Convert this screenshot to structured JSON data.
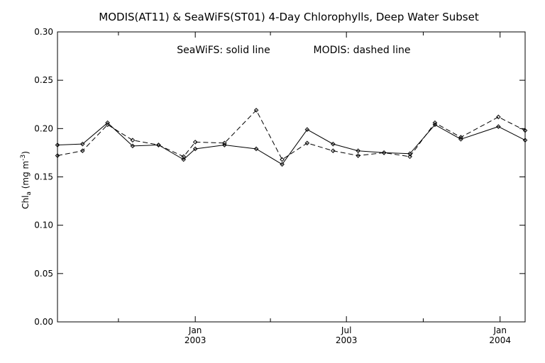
{
  "chart_data": {
    "type": "line",
    "title": "MODIS(AT11) & SeaWiFS(ST01) 4-Day Chlorophylls, Deep Water Subset",
    "annotation_solid": "SeaWiFS: solid line",
    "annotation_dashed": "MODIS: dashed line",
    "ylabel_main": "Chl",
    "ylabel_sub": "a",
    "ylabel_units": " (mg m",
    "ylabel_exp": "-3",
    "ylabel_close": ")",
    "ylim": [
      0.0,
      0.3
    ],
    "yticks": [
      "0.00",
      "0.05",
      "0.10",
      "0.15",
      "0.20",
      "0.25",
      "0.30"
    ],
    "xlim": [
      "2002-07-20",
      "2004-01-31"
    ],
    "xticks": [
      {
        "date": "2003-01-01",
        "label1": "Jan",
        "label2": "2003"
      },
      {
        "date": "2003-07-01",
        "label1": "Jul",
        "label2": "2003"
      },
      {
        "date": "2004-01-01",
        "label1": "Jan",
        "label2": "2004"
      }
    ],
    "x_minor_ticks": [
      "2002-10-01",
      "2003-04-01",
      "2003-10-01"
    ],
    "grid": false,
    "series": [
      {
        "name": "SeaWiFS",
        "style": "solid",
        "x": [
          "2002-07-20",
          "2002-08-19",
          "2002-09-18",
          "2002-10-18",
          "2002-11-18",
          "2002-12-18",
          "2003-01-01",
          "2003-02-05",
          "2003-03-15",
          "2003-04-15",
          "2003-05-15",
          "2003-06-15",
          "2003-07-15",
          "2003-08-15",
          "2003-09-15",
          "2003-10-15",
          "2003-11-15",
          "2003-12-30",
          "2004-01-31"
        ],
        "values": [
          0.183,
          0.184,
          0.206,
          0.182,
          0.183,
          0.168,
          0.179,
          0.183,
          0.179,
          0.163,
          0.199,
          0.184,
          0.177,
          0.175,
          0.174,
          0.204,
          0.189,
          0.202,
          0.188
        ]
      },
      {
        "name": "MODIS",
        "style": "dashed",
        "x": [
          "2002-07-20",
          "2002-08-19",
          "2002-09-18",
          "2002-10-18",
          "2002-11-18",
          "2002-12-18",
          "2003-01-01",
          "2003-02-05",
          "2003-03-15",
          "2003-04-15",
          "2003-05-15",
          "2003-06-15",
          "2003-07-15",
          "2003-08-15",
          "2003-09-15",
          "2003-10-15",
          "2003-11-15",
          "2003-12-30",
          "2004-01-31"
        ],
        "values": [
          0.172,
          0.177,
          0.204,
          0.188,
          0.183,
          0.171,
          0.186,
          0.185,
          0.219,
          0.168,
          0.185,
          0.177,
          0.172,
          0.175,
          0.171,
          0.206,
          0.191,
          0.212,
          0.198
        ]
      }
    ]
  }
}
